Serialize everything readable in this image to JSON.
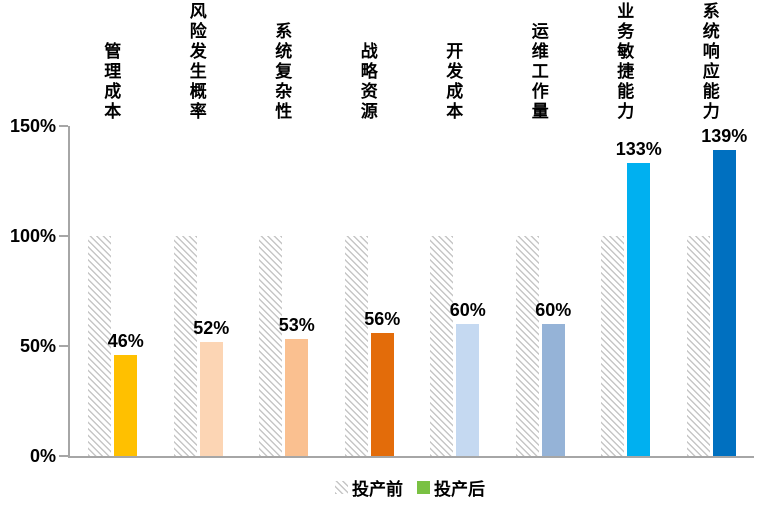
{
  "chart_data": {
    "type": "bar",
    "title": "",
    "categories": [
      "管理成本",
      "风险发生概率",
      "系统复杂性",
      "战略资源",
      "开发成本",
      "运维工作量",
      "业务敏捷能力",
      "系统响应能力"
    ],
    "series": [
      {
        "name": "投产前",
        "values": [
          100,
          100,
          100,
          100,
          100,
          100,
          100,
          100
        ],
        "style": "hatched-gray"
      },
      {
        "name": "投产后",
        "values": [
          46,
          52,
          53,
          56,
          60,
          60,
          133,
          139
        ],
        "point_colors": [
          "#FFC000",
          "#FCD5B4",
          "#FAC090",
          "#E36C0A",
          "#C5D9F1",
          "#95B3D7",
          "#00B0F0",
          "#0070C0"
        ]
      }
    ],
    "value_labels": [
      "46%",
      "52%",
      "53%",
      "56%",
      "60%",
      "60%",
      "133%",
      "139%"
    ],
    "y_ticks": [
      {
        "value": 0,
        "label": "0%"
      },
      {
        "value": 50,
        "label": "50%"
      },
      {
        "value": 100,
        "label": "100%"
      },
      {
        "value": 150,
        "label": "150%"
      }
    ],
    "ylim": [
      0,
      150
    ],
    "grid": false,
    "legend_position": "bottom-center",
    "legend": [
      {
        "label": "投产前",
        "swatch": "hatched-gray"
      },
      {
        "label": "投产后",
        "swatch_color": "#7AC143"
      }
    ],
    "axis_color": "#A6A6A6",
    "hatch_color": "#C6C6C6"
  }
}
